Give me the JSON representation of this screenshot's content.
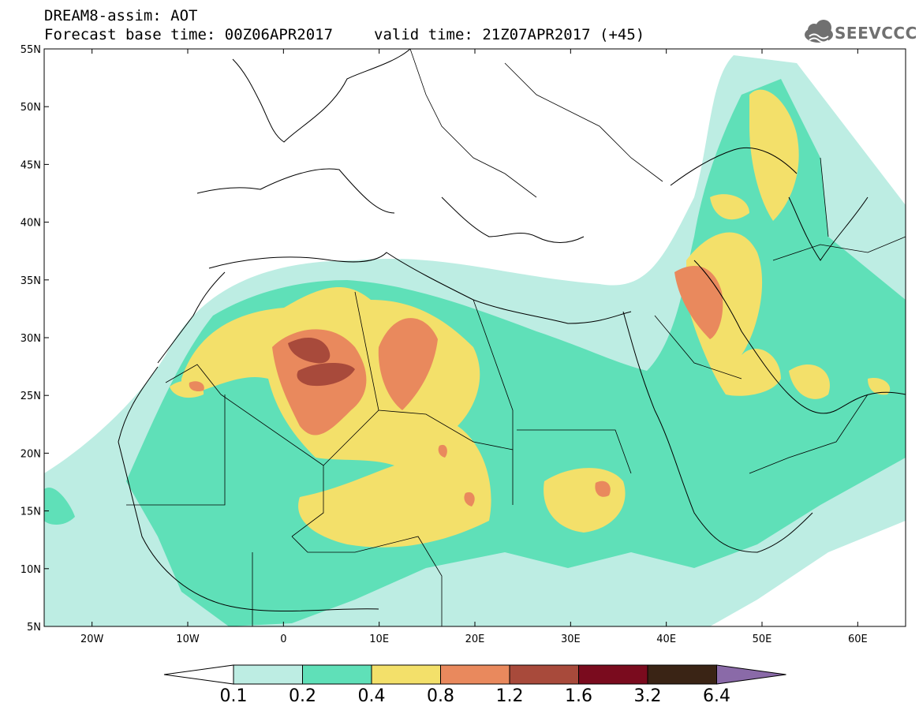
{
  "header": {
    "line1": "DREAM8-assim: AOT",
    "line2_base": "Forecast base time: 00Z06APR2017",
    "line2_valid": "valid time: 21Z07APR2017 (+45)",
    "logo_text": "SEEVCCC"
  },
  "axes": {
    "lat_labels": [
      "55N",
      "50N",
      "45N",
      "40N",
      "35N",
      "30N",
      "25N",
      "20N",
      "15N",
      "10N",
      "5N"
    ],
    "lon_labels": [
      "20W",
      "10W",
      "0",
      "10E",
      "20E",
      "30E",
      "40E",
      "50E",
      "60E"
    ]
  },
  "colorbar": {
    "labels": [
      "0.1",
      "0.2",
      "0.4",
      "0.8",
      "1.2",
      "1.6",
      "3.2",
      "6.4"
    ],
    "colors": [
      "#ffffff",
      "#bdede3",
      "#5fe0b8",
      "#f3e06a",
      "#e9895d",
      "#a84a3b",
      "#7a0b1e",
      "#3a2415",
      "#8a6aa8"
    ]
  },
  "chart_data": {
    "type": "heatmap",
    "title": "DREAM8-assim: AOT",
    "variable": "AOT",
    "lon_range": [
      -25,
      65
    ],
    "lat_range": [
      5,
      55
    ],
    "levels": [
      0.1,
      0.2,
      0.4,
      0.8,
      1.2,
      1.6,
      3.2,
      6.4
    ]
  }
}
